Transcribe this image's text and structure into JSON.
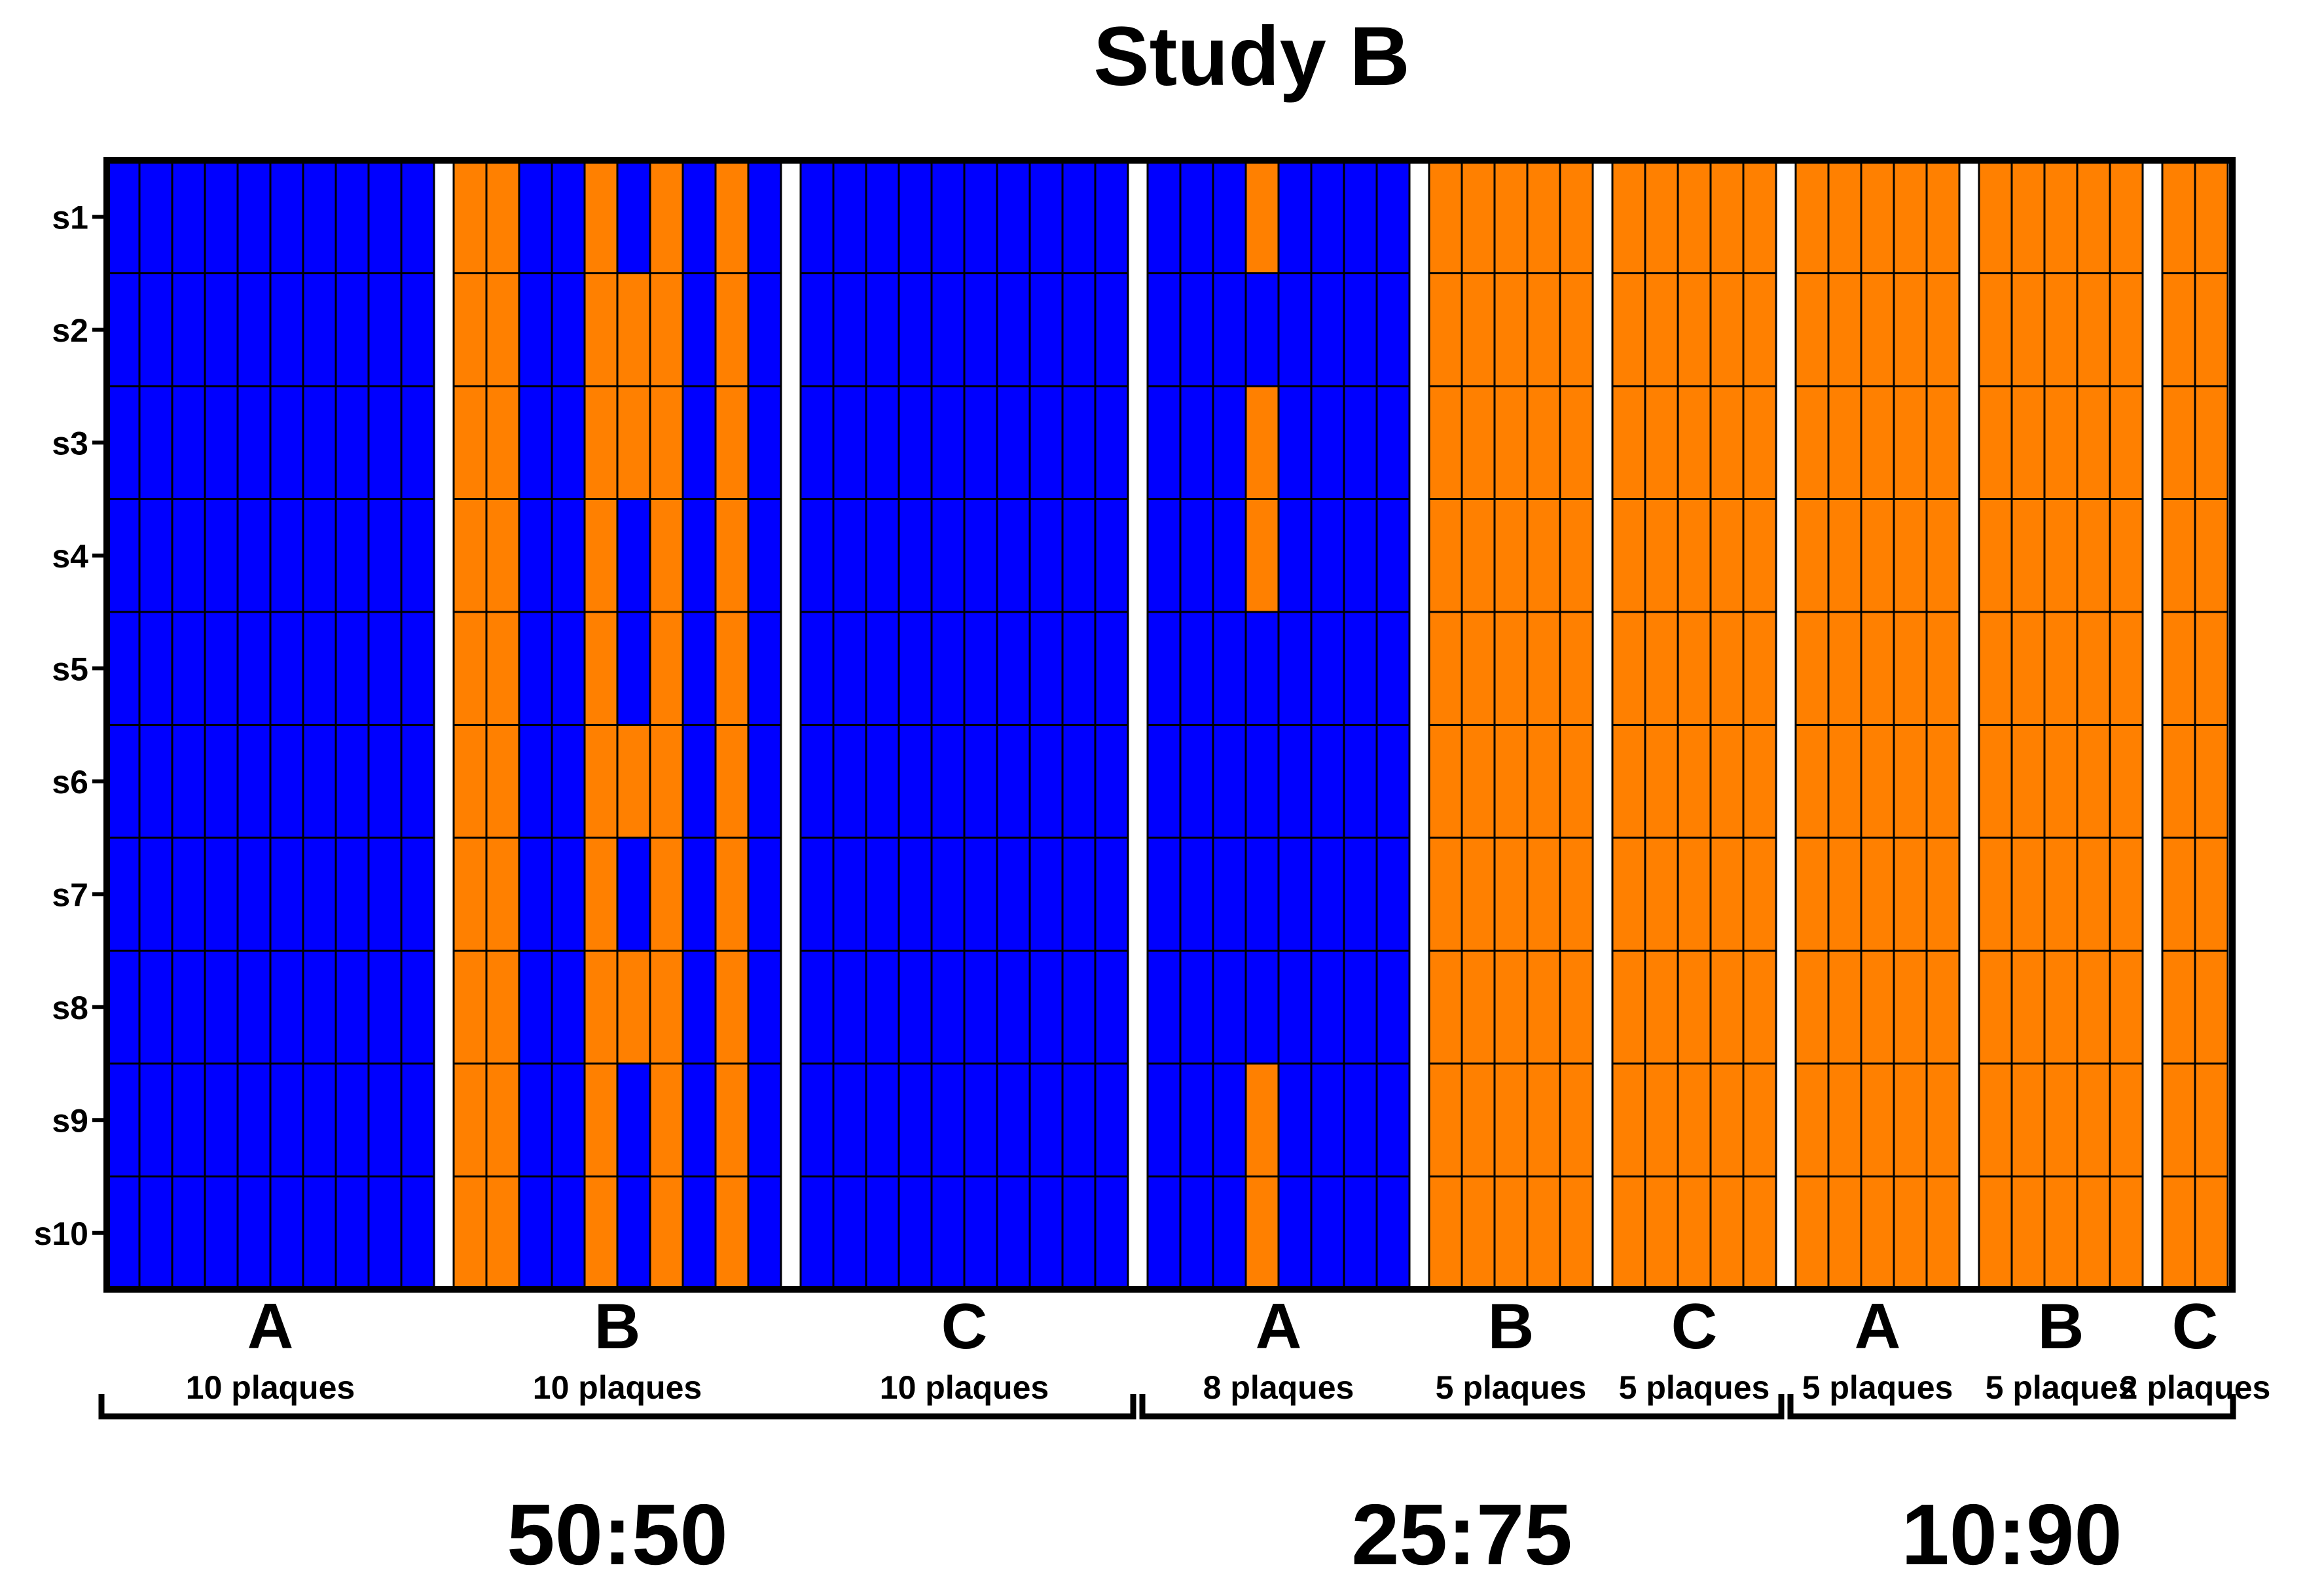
{
  "chart_data": {
    "type": "heatmap",
    "title": "Study B",
    "colors": {
      "blue": "#0000ff",
      "orange": "#ff8000",
      "grid": "#000000",
      "background": "#ffffff"
    },
    "row_labels": [
      "s1",
      "s2",
      "s3",
      "s4",
      "s5",
      "s6",
      "s7",
      "s8",
      "s9",
      "s10"
    ],
    "ratios": [
      {
        "label": "50:50",
        "groups": [
          {
            "label": "A",
            "count_label": "10 plaques",
            "matrix": [
              "BBBBBBBBBB",
              "BBBBBBBBBB",
              "BBBBBBBBBB",
              "BBBBBBBBBB",
              "BBBBBBBBBB",
              "BBBBBBBBBB",
              "BBBBBBBBBB",
              "BBBBBBBBBB",
              "BBBBBBBBBB",
              "BBBBBBBBBB"
            ]
          },
          {
            "label": "B",
            "count_label": "10 plaques",
            "matrix": [
              "OOBBOBOBOB",
              "OOBBOOOBOB",
              "OOBBOOOBOB",
              "OOBBOBOBOB",
              "OOBBOBOBOB",
              "OOBBOOOBOB",
              "OOBBOBOBOB",
              "OOBBOOOBOB",
              "OOBBOBOBOB",
              "OOBBOBOBOB"
            ]
          },
          {
            "label": "C",
            "count_label": "10 plaques",
            "matrix": [
              "BBBBBBBBBB",
              "BBBBBBBBBB",
              "BBBBBBBBBB",
              "BBBBBBBBBB",
              "BBBBBBBBBB",
              "BBBBBBBBBB",
              "BBBBBBBBBB",
              "BBBBBBBBBB",
              "BBBBBBBBBB",
              "BBBBBBBBBB"
            ]
          }
        ]
      },
      {
        "label": "25:75",
        "groups": [
          {
            "label": "A",
            "count_label": "8 plaques",
            "matrix": [
              "BBBOBBBB",
              "BBBBBBBB",
              "BBBOBBBB",
              "BBBOBBBB",
              "BBBBBBBB",
              "BBBBBBBB",
              "BBBBBBBB",
              "BBBBBBBB",
              "BBBOBBBB",
              "BBBOBBBB"
            ]
          },
          {
            "label": "B",
            "count_label": "5 plaques",
            "matrix": [
              "OOOOO",
              "OOOOO",
              "OOOOO",
              "OOOOO",
              "OOOOO",
              "OOOOO",
              "OOOOO",
              "OOOOO",
              "OOOOO",
              "OOOOO"
            ]
          },
          {
            "label": "C",
            "count_label": "5 plaques",
            "matrix": [
              "OOOOO",
              "OOOOO",
              "OOOOO",
              "OOOOO",
              "OOOOO",
              "OOOOO",
              "OOOOO",
              "OOOOO",
              "OOOOO",
              "OOOOO"
            ]
          }
        ]
      },
      {
        "label": "10:90",
        "groups": [
          {
            "label": "A",
            "count_label": "5 plaques",
            "matrix": [
              "OOOOO",
              "OOOOO",
              "OOOOO",
              "OOOOO",
              "OOOOO",
              "OOOOO",
              "OOOOO",
              "OOOOO",
              "OOOOO",
              "OOOOO"
            ]
          },
          {
            "label": "B",
            "count_label": "5 plaques",
            "matrix": [
              "OOOOO",
              "OOOOO",
              "OOOOO",
              "OOOOO",
              "OOOOO",
              "OOOOO",
              "OOOOO",
              "OOOOO",
              "OOOOO",
              "OOOOO"
            ]
          },
          {
            "label": "C",
            "count_label": "2 plaques",
            "matrix": [
              "OO",
              "OO",
              "OO",
              "OO",
              "OO",
              "OO",
              "OO",
              "OO",
              "OO",
              "OO"
            ]
          }
        ]
      }
    ]
  }
}
